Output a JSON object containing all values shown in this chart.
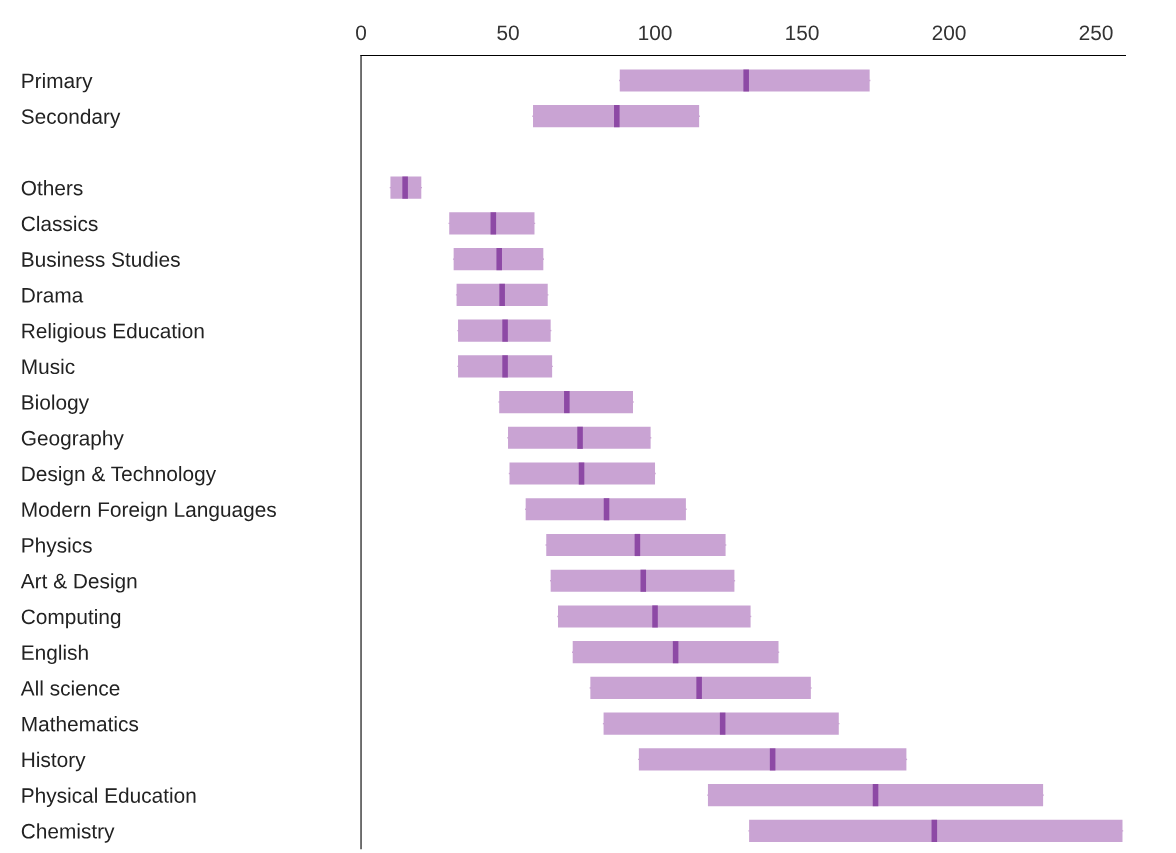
{
  "chart_data": {
    "type": "box",
    "orientation": "horizontal",
    "xlim": [
      0,
      260
    ],
    "xticks": [
      0,
      50,
      100,
      150,
      200,
      250
    ],
    "grid": false,
    "categories": [
      "Primary",
      "Secondary",
      null,
      "Others",
      "Classics",
      "Business Studies",
      "Drama",
      "Religious Education",
      "Music",
      "Biology",
      "Geography",
      "Design & Technology",
      "Modern Foreign Languages",
      "Physics",
      "Art & Design",
      "Computing",
      "English",
      "All science",
      "Mathematics",
      "History",
      "Physical Education",
      "Chemistry"
    ],
    "series": [
      {
        "color": "#c9a3d3",
        "boxes": [
          {
            "low": 88,
            "q1": 88,
            "median": 131,
            "q3": 173,
            "high": 173
          },
          {
            "low": 58.5,
            "q1": 58.5,
            "median": 87,
            "q3": 115,
            "high": 115
          },
          null,
          {
            "low": 10,
            "q1": 10,
            "median": 15,
            "q3": 20.5,
            "high": 20.5
          },
          {
            "low": 30,
            "q1": 30,
            "median": 45,
            "q3": 59,
            "high": 59
          },
          {
            "low": 31.5,
            "q1": 31.5,
            "median": 47,
            "q3": 62,
            "high": 62
          },
          {
            "low": 32.5,
            "q1": 32.5,
            "median": 48,
            "q3": 63.5,
            "high": 63.5
          },
          {
            "low": 33,
            "q1": 33,
            "median": 49,
            "q3": 64.5,
            "high": 64.5
          },
          {
            "low": 33,
            "q1": 33,
            "median": 49,
            "q3": 65,
            "high": 65
          },
          {
            "low": 47,
            "q1": 47,
            "median": 70,
            "q3": 92.5,
            "high": 92.5
          },
          {
            "low": 50,
            "q1": 50,
            "median": 74.5,
            "q3": 98.5,
            "high": 98.5
          },
          {
            "low": 50.5,
            "q1": 50.5,
            "median": 75,
            "q3": 100,
            "high": 100
          },
          {
            "low": 56,
            "q1": 56,
            "median": 83.5,
            "q3": 110.5,
            "high": 110.5
          },
          {
            "low": 63,
            "q1": 63,
            "median": 94,
            "q3": 124,
            "high": 124
          },
          {
            "low": 64.5,
            "q1": 64.5,
            "median": 96,
            "q3": 127,
            "high": 127
          },
          {
            "low": 67,
            "q1": 67,
            "median": 100,
            "q3": 132.5,
            "high": 132.5
          },
          {
            "low": 72,
            "q1": 72,
            "median": 107,
            "q3": 142,
            "high": 142
          },
          {
            "low": 78,
            "q1": 78,
            "median": 115,
            "q3": 153,
            "high": 153
          },
          {
            "low": 82.5,
            "q1": 82.5,
            "median": 123,
            "q3": 162.5,
            "high": 162.5
          },
          {
            "low": 94.5,
            "q1": 94.5,
            "median": 140,
            "q3": 185.5,
            "high": 185.5
          },
          {
            "low": 118,
            "q1": 118,
            "median": 175,
            "q3": 232,
            "high": 232
          },
          {
            "low": 132,
            "q1": 132,
            "median": 195,
            "q3": 259,
            "high": 259
          }
        ]
      }
    ]
  }
}
